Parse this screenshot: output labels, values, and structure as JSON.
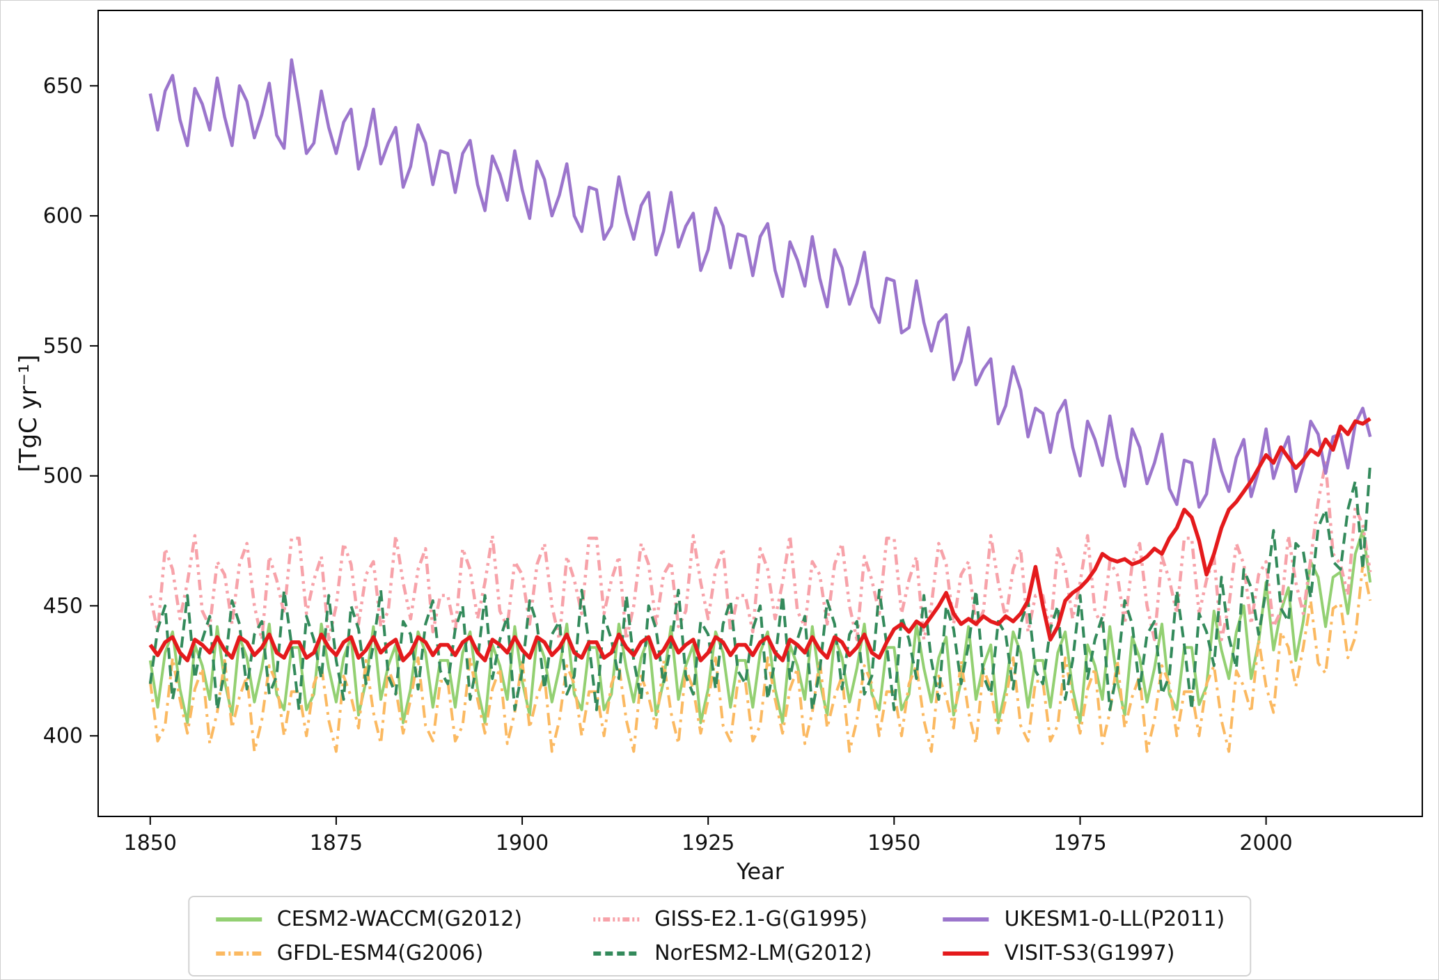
{
  "figure": {
    "background": "#ffffff",
    "text_color": "#111111",
    "frame_color": "#000000"
  },
  "chart_data": {
    "type": "line",
    "title": "",
    "xlabel": "Year",
    "ylabel": "[TgC yr⁻¹]",
    "grid": false,
    "legend_position": "bottom-center",
    "legend_columns": 3,
    "x_start": 1850,
    "x_end": 2014,
    "x_step": 1,
    "xlim": [
      1843,
      2021
    ],
    "ylim": [
      369,
      679
    ],
    "x_ticks": [
      1850,
      1875,
      1900,
      1925,
      1950,
      1975,
      2000
    ],
    "y_ticks": [
      400,
      450,
      500,
      550,
      600,
      650
    ],
    "series": [
      {
        "name": "CESM2-WACCM(G2012)",
        "color": "#93d072",
        "style": "solid",
        "width": 4,
        "values": [
          429,
          411,
          432,
          440,
          418,
          405,
          435,
          427,
          414,
          442,
          421,
          408,
          438,
          430,
          413,
          426,
          443,
          416,
          410,
          434,
          434,
          410,
          416,
          443,
          426,
          413,
          430,
          438,
          408,
          421,
          442,
          414,
          427,
          435,
          405,
          418,
          440,
          432,
          411,
          429,
          429,
          411,
          432,
          440,
          418,
          405,
          435,
          427,
          414,
          442,
          421,
          408,
          438,
          430,
          413,
          426,
          443,
          416,
          410,
          434,
          434,
          410,
          416,
          443,
          426,
          413,
          430,
          438,
          408,
          421,
          442,
          414,
          427,
          435,
          405,
          418,
          440,
          432,
          411,
          429,
          429,
          411,
          432,
          440,
          418,
          405,
          435,
          427,
          414,
          442,
          421,
          408,
          438,
          430,
          413,
          426,
          443,
          416,
          410,
          434,
          434,
          410,
          416,
          443,
          426,
          413,
          430,
          438,
          408,
          421,
          442,
          414,
          427,
          435,
          405,
          418,
          440,
          432,
          411,
          429,
          429,
          411,
          432,
          440,
          418,
          405,
          435,
          427,
          414,
          442,
          421,
          408,
          438,
          430,
          413,
          426,
          443,
          416,
          410,
          434,
          434,
          412,
          419,
          448,
          433,
          422,
          440,
          450,
          422,
          436,
          459,
          433,
          448,
          457,
          429,
          444,
          467,
          461,
          442,
          461,
          463,
          447,
          470,
          479,
          459
        ]
      },
      {
        "name": "GFDL-ESM4(G2006)",
        "color": "#fbb961",
        "style": "dashdot",
        "width": 4,
        "values": [
          421,
          398,
          404,
          430,
          414,
          401,
          418,
          426,
          397,
          409,
          429,
          403,
          415,
          423,
          394,
          406,
          427,
          420,
          400,
          417,
          417,
          400,
          420,
          427,
          406,
          394,
          423,
          415,
          403,
          429,
          409,
          397,
          426,
          418,
          401,
          414,
          430,
          404,
          398,
          421,
          421,
          398,
          404,
          430,
          414,
          401,
          418,
          426,
          397,
          409,
          429,
          403,
          415,
          423,
          394,
          406,
          427,
          420,
          400,
          417,
          417,
          400,
          420,
          427,
          406,
          394,
          423,
          415,
          403,
          429,
          409,
          397,
          426,
          418,
          401,
          414,
          430,
          404,
          398,
          421,
          421,
          398,
          404,
          430,
          414,
          401,
          418,
          426,
          397,
          409,
          429,
          403,
          415,
          423,
          394,
          406,
          427,
          420,
          400,
          417,
          417,
          400,
          420,
          427,
          406,
          394,
          423,
          415,
          403,
          429,
          409,
          397,
          426,
          418,
          401,
          414,
          430,
          404,
          398,
          421,
          421,
          398,
          404,
          430,
          414,
          401,
          418,
          426,
          397,
          409,
          429,
          403,
          415,
          423,
          394,
          406,
          427,
          420,
          400,
          417,
          417,
          400,
          420,
          427,
          406,
          394,
          425,
          419,
          409,
          437,
          419,
          409,
          440,
          434,
          419,
          434,
          452,
          428,
          424,
          449,
          451,
          430,
          438,
          466,
          452
        ]
      },
      {
        "name": "GISS-E2.1-G(G1995)",
        "color": "#f7a2a9",
        "style": "dashdotdot",
        "width": 4.5,
        "values": [
          454,
          440,
          472,
          464,
          445,
          459,
          477,
          448,
          442,
          467,
          462,
          443,
          466,
          474,
          450,
          437,
          469,
          460,
          447,
          476,
          476,
          447,
          460,
          469,
          437,
          450,
          474,
          466,
          443,
          462,
          467,
          442,
          448,
          477,
          459,
          445,
          464,
          472,
          440,
          454,
          454,
          440,
          472,
          464,
          445,
          459,
          477,
          448,
          442,
          467,
          462,
          443,
          466,
          474,
          450,
          437,
          469,
          460,
          447,
          476,
          476,
          447,
          460,
          469,
          437,
          450,
          474,
          466,
          443,
          462,
          467,
          442,
          448,
          477,
          459,
          445,
          464,
          472,
          440,
          454,
          454,
          440,
          472,
          464,
          445,
          459,
          477,
          448,
          442,
          467,
          462,
          443,
          466,
          474,
          450,
          437,
          469,
          460,
          447,
          476,
          476,
          447,
          460,
          469,
          437,
          450,
          474,
          466,
          443,
          462,
          467,
          442,
          448,
          477,
          459,
          445,
          464,
          472,
          440,
          454,
          454,
          440,
          472,
          464,
          445,
          459,
          477,
          448,
          442,
          467,
          462,
          443,
          466,
          474,
          450,
          437,
          469,
          460,
          447,
          476,
          476,
          447,
          460,
          469,
          437,
          450,
          474,
          466,
          443,
          462,
          467,
          442,
          448,
          477,
          459,
          447,
          468,
          490,
          505,
          470,
          466,
          454,
          488,
          481,
          463
        ]
      },
      {
        "name": "NorESM2-LM(G2012)",
        "color": "#338a5b",
        "style": "dashed",
        "width": 4,
        "values": [
          420,
          441,
          450,
          414,
          429,
          454,
          422,
          437,
          446,
          410,
          425,
          452,
          443,
          418,
          439,
          444,
          416,
          423,
          456,
          435,
          410,
          446,
          437,
          422,
          454,
          429,
          414,
          450,
          441,
          420,
          435,
          456,
          423,
          416,
          444,
          439,
          418,
          443,
          452,
          425,
          420,
          441,
          450,
          414,
          429,
          454,
          422,
          437,
          446,
          410,
          425,
          452,
          443,
          418,
          439,
          444,
          416,
          423,
          456,
          435,
          410,
          446,
          437,
          422,
          454,
          429,
          414,
          450,
          441,
          420,
          435,
          456,
          423,
          416,
          444,
          439,
          418,
          443,
          452,
          425,
          420,
          441,
          450,
          414,
          429,
          454,
          422,
          437,
          446,
          410,
          425,
          452,
          443,
          418,
          439,
          444,
          416,
          423,
          456,
          435,
          410,
          446,
          437,
          422,
          454,
          429,
          414,
          450,
          441,
          420,
          435,
          456,
          423,
          416,
          444,
          439,
          418,
          443,
          452,
          425,
          420,
          441,
          450,
          414,
          429,
          454,
          422,
          437,
          446,
          410,
          425,
          452,
          443,
          418,
          439,
          444,
          416,
          423,
          456,
          435,
          410,
          447,
          440,
          427,
          461,
          438,
          426,
          464,
          457,
          439,
          456,
          479,
          449,
          444,
          474,
          471,
          453,
          480,
          487,
          467,
          464,
          487,
          498,
          464,
          505
        ]
      },
      {
        "name": "UKESM1-0-LL(P2011)",
        "color": "#9b75cc",
        "style": "solid",
        "width": 4.5,
        "values": [
          647,
          633,
          648,
          654,
          637,
          627,
          649,
          643,
          633,
          653,
          638,
          627,
          650,
          644,
          630,
          639,
          651,
          631,
          626,
          660,
          643,
          624,
          628,
          648,
          634,
          624,
          636,
          641,
          618,
          627,
          641,
          620,
          628,
          634,
          611,
          619,
          635,
          628,
          612,
          625,
          624,
          609,
          624,
          629,
          612,
          602,
          623,
          616,
          606,
          625,
          610,
          599,
          621,
          614,
          600,
          608,
          620,
          600,
          594,
          611,
          610,
          591,
          596,
          615,
          601,
          591,
          604,
          609,
          585,
          594,
          609,
          588,
          596,
          601,
          579,
          587,
          603,
          596,
          580,
          593,
          592,
          577,
          592,
          597,
          579,
          569,
          590,
          583,
          573,
          592,
          576,
          565,
          587,
          580,
          566,
          574,
          586,
          565,
          559,
          576,
          575,
          555,
          557,
          575,
          559,
          548,
          559,
          562,
          537,
          544,
          557,
          535,
          541,
          545,
          520,
          527,
          542,
          533,
          515,
          526,
          524,
          509,
          524,
          529,
          511,
          500,
          521,
          514,
          504,
          523,
          507,
          496,
          518,
          511,
          497,
          505,
          516,
          495,
          489,
          506,
          505,
          488,
          493,
          514,
          502,
          494,
          507,
          514,
          492,
          502,
          518,
          499,
          508,
          515,
          494,
          504,
          521,
          516,
          501,
          515,
          516,
          503,
          520,
          526,
          515
        ]
      },
      {
        "name": "VISIT-S3(G1997)",
        "color": "#e41a1c",
        "style": "solid",
        "width": 5.5,
        "values": [
          435,
          431,
          436,
          438,
          432,
          429,
          437,
          435,
          432,
          438,
          433,
          430,
          438,
          436,
          431,
          434,
          439,
          432,
          430,
          436,
          436,
          430,
          432,
          439,
          434,
          431,
          436,
          438,
          430,
          433,
          438,
          432,
          435,
          437,
          429,
          432,
          438,
          436,
          431,
          435,
          435,
          431,
          436,
          438,
          432,
          429,
          437,
          435,
          432,
          438,
          433,
          430,
          438,
          436,
          431,
          434,
          439,
          432,
          430,
          436,
          436,
          430,
          432,
          439,
          434,
          431,
          436,
          438,
          430,
          433,
          438,
          432,
          435,
          437,
          429,
          432,
          438,
          436,
          431,
          435,
          435,
          431,
          436,
          438,
          432,
          429,
          437,
          435,
          432,
          438,
          433,
          430,
          438,
          436,
          431,
          434,
          439,
          432,
          430,
          436,
          441,
          443,
          440,
          444,
          442,
          446,
          450,
          455,
          447,
          443,
          445,
          443,
          446,
          444,
          443,
          446,
          444,
          447,
          452,
          465,
          450,
          437,
          442,
          452,
          455,
          457,
          460,
          464,
          470,
          468,
          467,
          468,
          466,
          467,
          469,
          472,
          470,
          476,
          480,
          487,
          484,
          475,
          462,
          470,
          480,
          487,
          490,
          494,
          498,
          503,
          508,
          505,
          511,
          507,
          503,
          506,
          510,
          508,
          514,
          510,
          519,
          516,
          521,
          520,
          522
        ]
      }
    ]
  }
}
